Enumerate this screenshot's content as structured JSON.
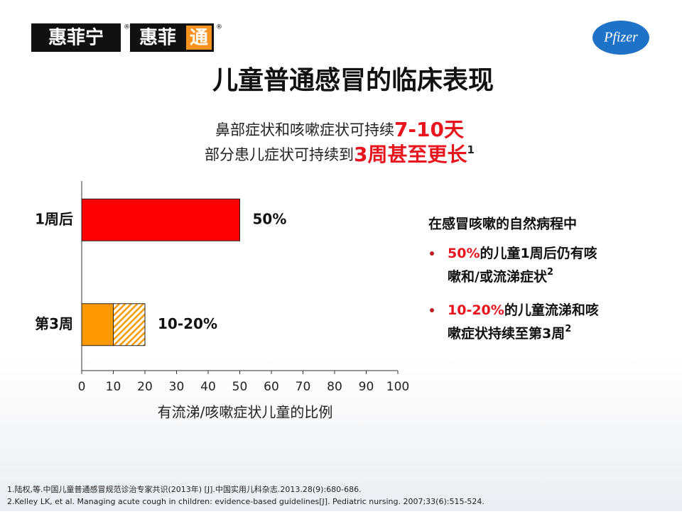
{
  "slide": {
    "logo_left": "惠菲宁",
    "logo_left_mark": "®",
    "logo_mid_a": "惠菲",
    "logo_mid_b": "通",
    "logo_mid_mark": "®",
    "logo_right": "Pfizer",
    "title": "儿童普通感冒的临床表现",
    "subtitle_1a": "鼻部症状和咳嗽症状可持续",
    "subtitle_1b": "7-10天",
    "subtitle_2a": "部分患儿症状可持续到",
    "subtitle_2b": "3周甚至更长",
    "subtitle_2sup": "1",
    "side_heading": "在感冒咳嗽的自然病程中",
    "bullets": [
      {
        "red": "50%",
        "text_1": "的儿童1周后仍有咳",
        "text_2": "嗽和/或流涕症状",
        "sup": "2"
      },
      {
        "red": "10-20%",
        "text_1": "的儿童流涕和咳",
        "text_2": "嗽症状持续至第3周",
        "sup": "2"
      }
    ],
    "references": [
      "1.陆权,等.中国儿童普通感冒规范诊治专家共识(2013年) [J].中国实用儿科杂志.2013.28(9):680-686.",
      "2.Kelley LK, et al. Managing acute cough in children: evidence-based guidelines[J]. Pediatric nursing. 2007;33(6):515-524."
    ]
  },
  "chart_data": {
    "type": "hbar",
    "categories": [
      "1周后",
      "第3周"
    ],
    "series": [
      {
        "values": [
          50,
          10
        ],
        "colors": [
          "#ff0000",
          "#ff9900"
        ]
      },
      {
        "values": [
          null,
          10
        ],
        "color": "#ff9900",
        "pattern": "hatch"
      }
    ],
    "value_labels": [
      "50%",
      "10-20%"
    ],
    "xlabel": "有流涕/咳嗽症状儿童的比例",
    "xlim": [
      0,
      100
    ],
    "xticks": [
      0,
      10,
      20,
      30,
      40,
      50,
      60,
      70,
      80,
      90,
      100
    ]
  }
}
